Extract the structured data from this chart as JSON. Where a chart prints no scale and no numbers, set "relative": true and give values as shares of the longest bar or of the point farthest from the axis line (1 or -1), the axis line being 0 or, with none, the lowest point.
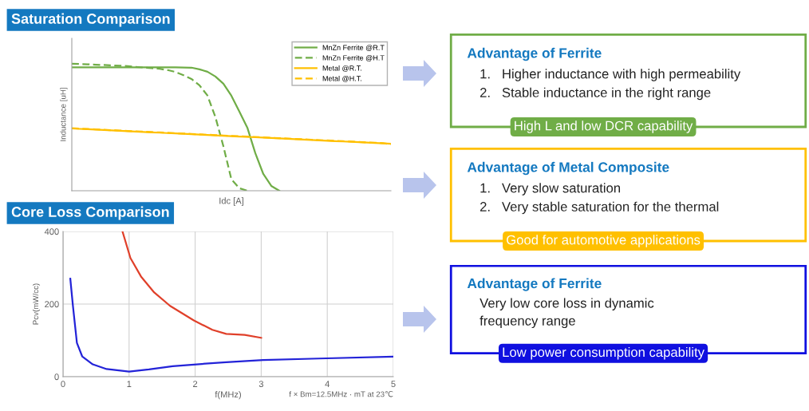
{
  "chart_data": [
    {
      "type": "line",
      "title": "Saturation Comparison",
      "xlabel": "Idc [A]",
      "ylabel": "Inductance [uH]",
      "relative": true,
      "legend": "top right",
      "categories": [
        null,
        null,
        null,
        null,
        null,
        null,
        null,
        null,
        null,
        null,
        null,
        null,
        null,
        null,
        null,
        null,
        null,
        null,
        null,
        null,
        null,
        null,
        null,
        null,
        null,
        null,
        null,
        null,
        null,
        null,
        null,
        null,
        null,
        null,
        null,
        null,
        null,
        null,
        null,
        null,
        null
      ],
      "series": [
        {
          "name": "MnZn Ferrite @R.T",
          "color": "#70ad47",
          "line_style": "solid",
          "values": [
            0.972,
            0.972,
            0.972,
            0.972,
            0.972,
            0.972,
            0.972,
            0.972,
            0.972,
            0.972,
            0.972,
            0.972,
            0.972,
            0.971,
            0.97,
            0.969,
            0.956,
            0.937,
            0.899,
            0.843,
            0.748,
            0.623,
            0.497,
            0.296,
            0.132,
            0.038,
            0,
            null,
            null,
            null,
            null,
            null,
            null,
            null,
            null,
            null,
            null,
            null,
            null,
            null,
            null
          ]
        },
        {
          "name": "MnZn Ferrite @H.T",
          "color": "#70ad47",
          "line_style": "dashed",
          "values": [
            1.0,
            0.998,
            0.995,
            0.992,
            0.99,
            0.987,
            0.984,
            0.981,
            0.975,
            0.97,
            0.965,
            0.96,
            0.95,
            0.935,
            0.91,
            0.88,
            0.83,
            0.75,
            0.58,
            0.35,
            0.09,
            0.02,
            0,
            null,
            null,
            null,
            null,
            null,
            null,
            null,
            null,
            null,
            null,
            null,
            null,
            null,
            null,
            null,
            null,
            null,
            null
          ]
        },
        {
          "name": "Metal @R.T.",
          "color": "#ffc000",
          "line_style": "solid",
          "values": [
            0.49,
            0.487,
            0.484,
            0.481,
            0.478,
            0.475,
            0.472,
            0.469,
            0.466,
            0.463,
            0.46,
            0.457,
            0.454,
            0.451,
            0.448,
            0.445,
            0.442,
            0.439,
            0.436,
            0.433,
            0.43,
            0.427,
            0.424,
            0.421,
            0.418,
            0.415,
            0.412,
            0.409,
            0.406,
            0.403,
            0.4,
            0.397,
            0.394,
            0.391,
            0.388,
            0.385,
            0.382,
            0.379,
            0.376,
            0.373,
            0.37
          ]
        },
        {
          "name": "Metal @H.T.",
          "color": "#ffc000",
          "line_style": "dashed",
          "values": [
            0.492,
            0.489,
            0.486,
            0.483,
            0.48,
            0.477,
            0.474,
            0.471,
            0.468,
            0.465,
            0.462,
            0.459,
            0.456,
            0.453,
            0.45,
            0.447,
            0.444,
            0.441,
            0.438,
            0.435,
            0.432,
            0.429,
            0.426,
            0.423,
            0.42,
            0.417,
            0.414,
            0.411,
            0.408,
            0.405,
            0.402,
            0.399,
            0.396,
            0.393,
            0.39,
            0.387,
            0.384,
            0.381,
            0.378,
            0.375,
            0.366
          ]
        }
      ]
    },
    {
      "type": "line",
      "title": "Core Loss Comparison",
      "xlabel": "f(MHz)",
      "ylabel": "Pcv(mW/cc)",
      "annotations": [
        "f × Bm=12.5MHz · mT at 23℃"
      ],
      "xlim": [
        0,
        5
      ],
      "xticks": [
        0,
        1,
        2,
        3,
        4,
        5
      ],
      "ylim": [
        0,
        400
      ],
      "yticks": [
        0,
        200,
        400
      ],
      "grid": true,
      "series": [
        {
          "color": "#2323d8",
          "x": [
            0.11,
            0.15,
            0.21,
            0.29,
            0.45,
            0.66,
            1.0,
            1.3,
            1.66,
            2.02,
            2.47,
            3.03,
            3.87,
            5.0
          ],
          "values": [
            270,
            195,
            93,
            56,
            34,
            21,
            14,
            20,
            29,
            34,
            40,
            46,
            50,
            55
          ]
        },
        {
          "color": "#e0402a",
          "x": [
            0.9,
            1.02,
            1.18,
            1.38,
            1.62,
            1.98,
            2.26,
            2.47,
            2.75,
            3.0
          ],
          "values": [
            400,
            327,
            276,
            232,
            195,
            155,
            129,
            118,
            115,
            107
          ]
        }
      ]
    },
    {
      "type": "other",
      "title": "Advantage of Ferrite",
      "color": "#70ad47",
      "annotations": [
        "1.   Higher inductance with high permeability",
        "2.   Stable inductance in the right range",
        "High L and low DCR capability"
      ]
    },
    {
      "type": "other",
      "title": "Advantage of Metal Composite",
      "color": "#ffc000",
      "annotations": [
        "1.   Very slow saturation",
        "2.   Very stable saturation for the thermal",
        "Good for automotive applications"
      ]
    },
    {
      "type": "other",
      "title": "Advantage of Ferrite",
      "color": "#1010e0",
      "annotations": [
        "Very low core loss in dynamic",
        "frequency range",
        "Low power consumption capability"
      ]
    }
  ]
}
